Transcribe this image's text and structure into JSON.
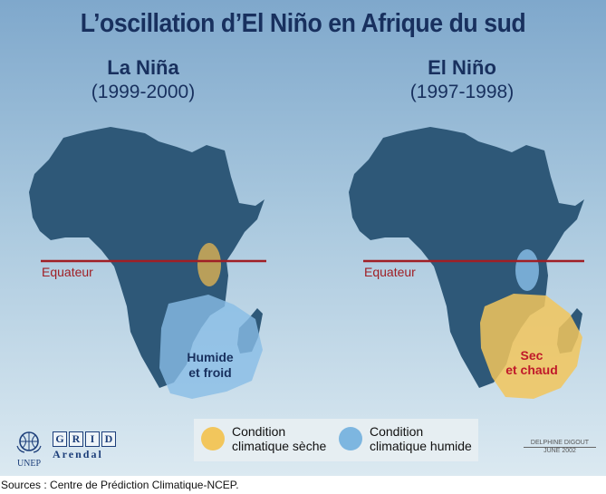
{
  "title": "L’oscillation d’El Niño en Afrique du sud",
  "maps": [
    {
      "name": "La Niña",
      "years": "(1999-2000)",
      "equator_label": "Equateur",
      "zone_label": [
        "Humide",
        "et froid"
      ],
      "zone_condition": "humide"
    },
    {
      "name": "El Niño",
      "years": "(1997-1998)",
      "equator_label": "Equateur",
      "zone_label": [
        "Sec",
        "et chaud"
      ],
      "zone_condition": "sèche"
    }
  ],
  "legend": {
    "dry": {
      "label_line1": "Condition",
      "label_line2": "climatique sèche",
      "color": "#f2c65c"
    },
    "wet": {
      "label_line1": "Condition",
      "label_line2": "climatique humide",
      "color": "#7db6e0"
    }
  },
  "logos": {
    "unep": "UNEP",
    "grid_letters": [
      "G",
      "R",
      "I",
      "D"
    ],
    "grid_sub": "Arendal"
  },
  "credit": {
    "author": "DELPHINE DIGOUT",
    "date": "JUNE 2002"
  },
  "sources": "Sources : Centre de Prédiction Climatique-NCEP.",
  "colors": {
    "land": "#2e5878",
    "equator": "#a01f25",
    "title": "#18305e",
    "dry_text": "#c0192a",
    "wet_text": "#18305e"
  }
}
